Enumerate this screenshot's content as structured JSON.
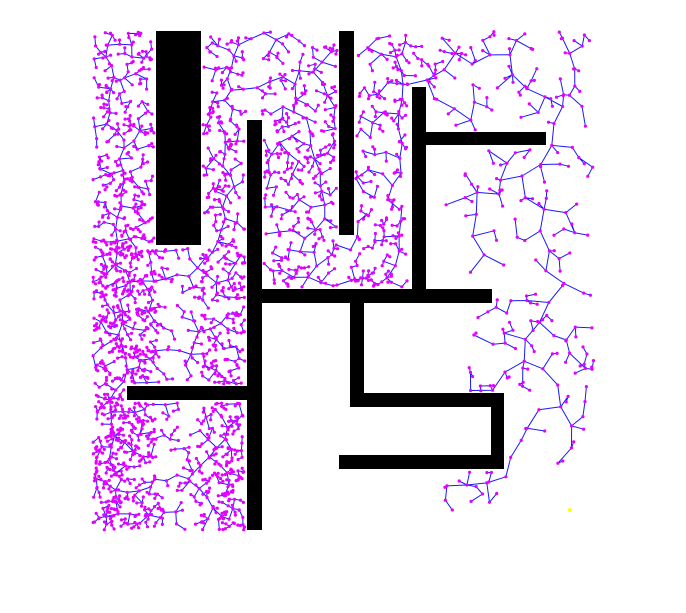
{
  "figure": {
    "type": "rrt-search-tree-maze",
    "colors": {
      "background": "#ffffff",
      "obstacle": "#000000",
      "edge": "#1a1aff",
      "node": "#e600ff",
      "goal": "#ffff00"
    },
    "icons": {
      "goal": "goal-marker-dot"
    }
  }
}
